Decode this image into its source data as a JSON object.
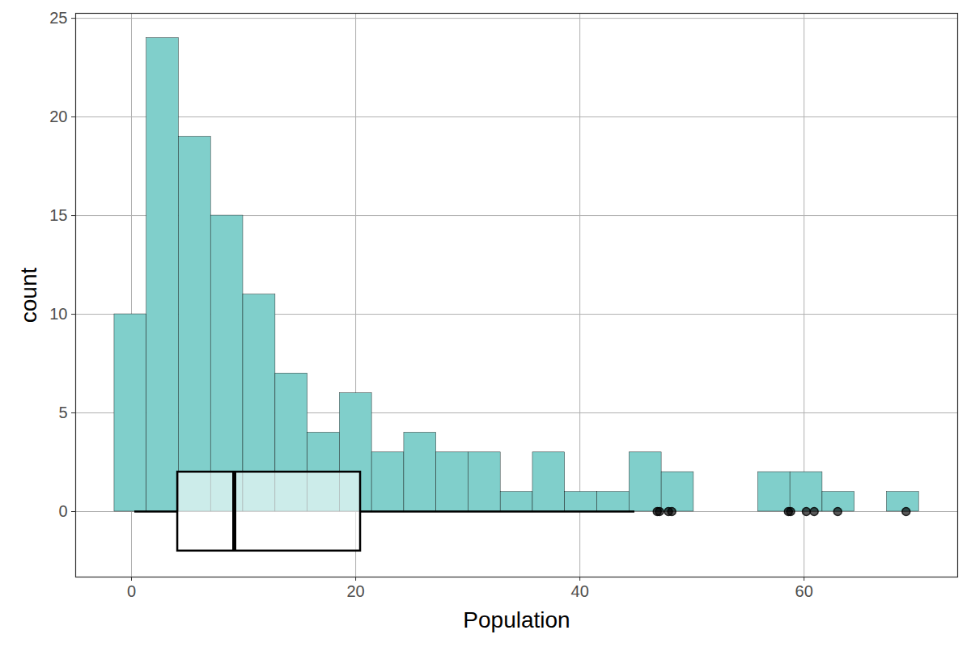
{
  "chart_data": {
    "type": "histogram",
    "x_label": "Population",
    "y_label": "count",
    "bins": [
      -1.52,
      1.35,
      4.22,
      7.09,
      9.96,
      12.84,
      15.71,
      18.58,
      21.45,
      24.32,
      27.19,
      30.06,
      32.93,
      35.8,
      38.67,
      41.55,
      44.42,
      47.29,
      50.16,
      53.03,
      55.9,
      58.77,
      61.64,
      64.51,
      67.38,
      70.25
    ],
    "counts": [
      10,
      24,
      19,
      15,
      11,
      7,
      4,
      6,
      3,
      4,
      3,
      3,
      1,
      3,
      1,
      1,
      3,
      2,
      0,
      0,
      2,
      2,
      1,
      0,
      1
    ],
    "color": "#80cfcb",
    "boxplot": {
      "whisker_low": 0.29,
      "q1": 4.12,
      "median": 9.17,
      "q3": 20.43,
      "whisker_high": 44.9,
      "outliers": [
        46.9,
        47.1,
        47.9,
        48.2,
        58.6,
        58.8,
        60.2,
        60.9,
        63.0,
        69.1
      ]
    },
    "xlim": [
      -4.98,
      73.7
    ],
    "ylim": [
      -3.32,
      25.25
    ],
    "xticks": [
      0,
      20,
      40,
      60
    ],
    "yticks": [
      0,
      5,
      10,
      15,
      20,
      25
    ],
    "grid": true
  }
}
